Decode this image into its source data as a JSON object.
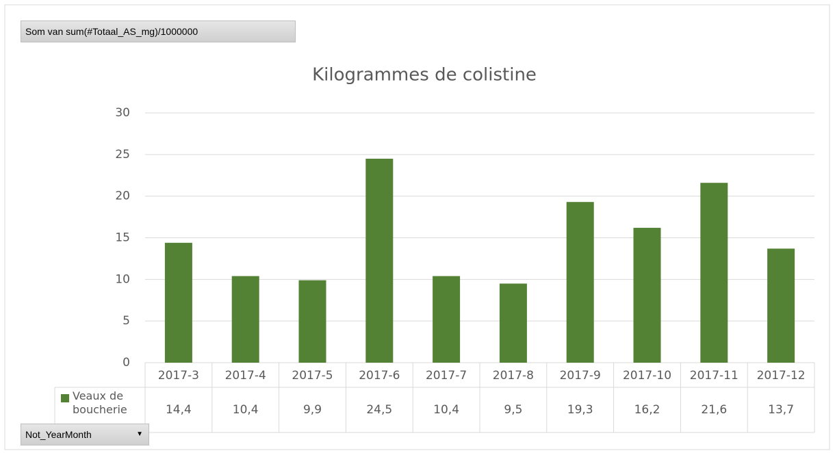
{
  "chart_data": {
    "type": "bar",
    "title": "Kilogrammes de colistine",
    "categories": [
      "2017-3",
      "2017-4",
      "2017-5",
      "2017-6",
      "2017-7",
      "2017-8",
      "2017-9",
      "2017-10",
      "2017-11",
      "2017-12"
    ],
    "series": [
      {
        "name": "Veaux de boucherie",
        "color": "#548235",
        "values": [
          14.4,
          10.4,
          9.9,
          24.5,
          10.4,
          9.5,
          19.3,
          16.2,
          21.6,
          13.7
        ],
        "value_labels": [
          "14,4",
          "10,4",
          "9,9",
          "24,5",
          "10,4",
          "9,5",
          "19,3",
          "16,2",
          "21,6",
          "13,7"
        ]
      }
    ],
    "ylim": [
      0,
      30
    ],
    "yticks": [
      0,
      5,
      10,
      15,
      20,
      25,
      30
    ],
    "grid": true
  },
  "pivot_buttons": {
    "value_field": "Som van sum(#Totaal_AS_mg)/1000000",
    "axis_field": "Not_YearMonth"
  }
}
